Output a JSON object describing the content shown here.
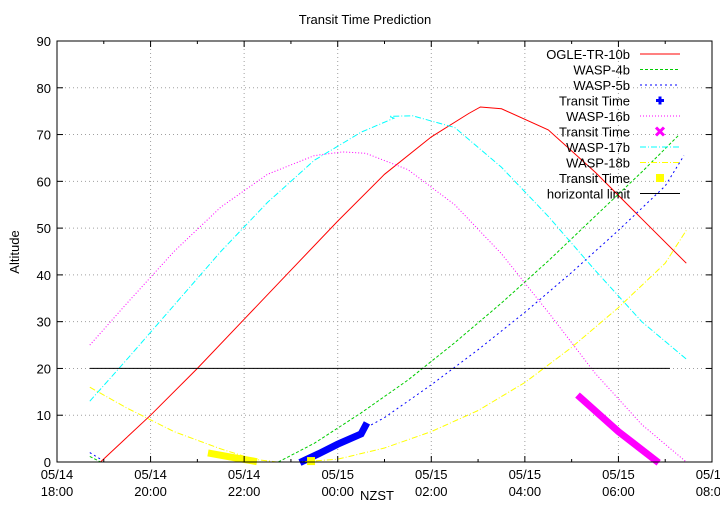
{
  "chart_data": {
    "type": "line",
    "title": "Transit Time Prediction",
    "xlabel": "NZST",
    "ylabel": "Altitude",
    "ylim": [
      0,
      90
    ],
    "yticks": [
      0,
      10,
      20,
      30,
      40,
      50,
      60,
      70,
      80,
      90
    ],
    "xlim_hours": [
      0,
      14
    ],
    "x_origin": "05/14 18:00",
    "xticks": [
      {
        "date": "05/14",
        "time": "18:00",
        "h": 0
      },
      {
        "date": "05/14",
        "time": "20:00",
        "h": 2
      },
      {
        "date": "05/14",
        "time": "22:00",
        "h": 4
      },
      {
        "date": "05/15",
        "time": "00:00",
        "h": 6
      },
      {
        "date": "05/15",
        "time": "02:00",
        "h": 8
      },
      {
        "date": "05/15",
        "time": "04:00",
        "h": 10
      },
      {
        "date": "05/15",
        "time": "06:00",
        "h": 12
      },
      {
        "date": "05/15",
        "time": "08:00",
        "h": 14
      }
    ],
    "grid": true,
    "legend_position": "top-right",
    "series": [
      {
        "name": "OGLE-TR-10b",
        "kind": "line",
        "color": "#ff0000",
        "dash": "",
        "points": [
          [
            0.93,
            0
          ],
          [
            2,
            10
          ],
          [
            3,
            20
          ],
          [
            4,
            30.5
          ],
          [
            5,
            41
          ],
          [
            6,
            51.5
          ],
          [
            7,
            61.5
          ],
          [
            8,
            69.5
          ],
          [
            8.8,
            74.5
          ],
          [
            9.05,
            75.9
          ],
          [
            9.5,
            75.5
          ],
          [
            10.5,
            71
          ],
          [
            11.5,
            62
          ],
          [
            12.5,
            52
          ],
          [
            13.45,
            42.5
          ]
        ]
      },
      {
        "name": "WASP-4b",
        "kind": "line",
        "color": "#00cc00",
        "dash": "3,2",
        "points_segments": [
          [
            [
              0.7,
              1.2
            ],
            [
              0.93,
              0
            ]
          ],
          [
            [
              4.73,
              0
            ],
            [
              5.5,
              4
            ],
            [
              6.5,
              10.5
            ],
            [
              7.5,
              17.5
            ],
            [
              8.5,
              25.5
            ],
            [
              9.5,
              34
            ],
            [
              10.5,
              43
            ],
            [
              11.5,
              52.5
            ],
            [
              12.5,
              62
            ],
            [
              13.3,
              70
            ]
          ]
        ]
      },
      {
        "name": "WASP-5b",
        "kind": "line",
        "color": "#0000ff",
        "dash": "2,3",
        "points_segments": [
          [
            [
              0.7,
              2
            ],
            [
              0.95,
              0.5
            ]
          ],
          [
            [
              5.2,
              0
            ],
            [
              6,
              4
            ],
            [
              7,
              9.5
            ],
            [
              8,
              16.5
            ],
            [
              9,
              24
            ],
            [
              10,
              32
            ],
            [
              11,
              40.5
            ],
            [
              12,
              49.5
            ],
            [
              13,
              59
            ],
            [
              13.4,
              65.5
            ]
          ]
        ]
      },
      {
        "name": "Transit Time",
        "for": "WASP-5b",
        "kind": "thick",
        "color": "#0000ff",
        "points": [
          [
            5.26,
            0.2
          ],
          [
            5.6,
            1.8
          ],
          [
            6,
            3.8
          ],
          [
            6.5,
            6
          ],
          [
            6.59,
            7.7
          ]
        ]
      },
      {
        "name": "WASP-16b",
        "kind": "line",
        "color": "#ff00ff",
        "dash": "1,2",
        "points": [
          [
            0.7,
            25
          ],
          [
            1.5,
            34
          ],
          [
            2.5,
            45
          ],
          [
            3.5,
            54.5
          ],
          [
            4.5,
            61.5
          ],
          [
            5.5,
            65.5
          ],
          [
            6.1,
            66.3
          ],
          [
            6.6,
            66
          ],
          [
            7.5,
            62.5
          ],
          [
            8.5,
            55
          ],
          [
            9.5,
            44.5
          ],
          [
            10.5,
            32
          ],
          [
            11.5,
            19
          ],
          [
            12.5,
            8
          ],
          [
            13.45,
            0
          ]
        ]
      },
      {
        "name": "Transit Time",
        "for": "WASP-16b",
        "kind": "thick",
        "color": "#ff00ff",
        "points": [
          [
            11.18,
            13.8
          ],
          [
            12,
            6.5
          ],
          [
            12.8,
            0.3
          ]
        ]
      },
      {
        "name": "WASP-17b",
        "kind": "line",
        "color": "#00ffff",
        "dash": "6,2,1,2",
        "points": [
          [
            0.7,
            13
          ],
          [
            1.5,
            22
          ],
          [
            2.5,
            33.5
          ],
          [
            3.5,
            45
          ],
          [
            4.5,
            55.5
          ],
          [
            5.5,
            64.5
          ],
          [
            6.5,
            70.5
          ],
          [
            7.2,
            73.5
          ],
          [
            7.1,
            73.9
          ],
          [
            7.6,
            74
          ],
          [
            8.5,
            71.5
          ],
          [
            9.5,
            63
          ],
          [
            10.5,
            52.5
          ],
          [
            11.5,
            41
          ],
          [
            12.5,
            30
          ],
          [
            13.45,
            22
          ]
        ]
      },
      {
        "name": "WASP-18b",
        "kind": "line",
        "color": "#ffff00",
        "dash": "6,2,1,2",
        "points": [
          [
            0.7,
            16
          ],
          [
            1.5,
            11.5
          ],
          [
            2.5,
            6.5
          ],
          [
            3.5,
            2.8
          ],
          [
            4.2,
            0.6
          ],
          [
            4.7,
            0
          ],
          [
            5.2,
            0
          ],
          [
            6,
            0.6
          ],
          [
            7,
            3
          ],
          [
            8,
            6.5
          ],
          [
            9,
            11
          ],
          [
            10,
            17
          ],
          [
            11,
            24.5
          ],
          [
            12,
            33
          ],
          [
            13,
            42.5
          ],
          [
            13.45,
            49.5
          ]
        ]
      },
      {
        "name": "Transit Time",
        "for": "WASP-18b",
        "kind": "thick",
        "color": "#ffff00",
        "points": [
          [
            3.3,
            1.8
          ],
          [
            3.8,
            0.9
          ],
          [
            4.2,
            0.2
          ]
        ],
        "extra_marker": [
          5.43,
          0.2
        ]
      },
      {
        "name": "horizontal limit",
        "kind": "line",
        "color": "#000000",
        "dash": "",
        "points": [
          [
            0.7,
            20
          ],
          [
            13.1,
            20
          ]
        ]
      }
    ]
  },
  "legend": [
    {
      "label": "OGLE-TR-10b",
      "color": "#ff0000",
      "style": "line",
      "dash": ""
    },
    {
      "label": "WASP-4b",
      "color": "#00cc00",
      "style": "line",
      "dash": "3,2"
    },
    {
      "label": "WASP-5b",
      "color": "#0000ff",
      "style": "line",
      "dash": "2,3"
    },
    {
      "label": "Transit Time",
      "color": "#0000ff",
      "style": "plus"
    },
    {
      "label": "WASP-16b",
      "color": "#ff00ff",
      "style": "line",
      "dash": "1,2"
    },
    {
      "label": "Transit Time",
      "color": "#ff00ff",
      "style": "cross"
    },
    {
      "label": "WASP-17b",
      "color": "#00ffff",
      "style": "line",
      "dash": "6,2,1,2"
    },
    {
      "label": "WASP-18b",
      "color": "#ffff00",
      "style": "line",
      "dash": "6,2,1,2"
    },
    {
      "label": "Transit Time",
      "color": "#ffff00",
      "style": "square"
    },
    {
      "label": "horizontal limit",
      "color": "#000000",
      "style": "line",
      "dash": ""
    }
  ]
}
